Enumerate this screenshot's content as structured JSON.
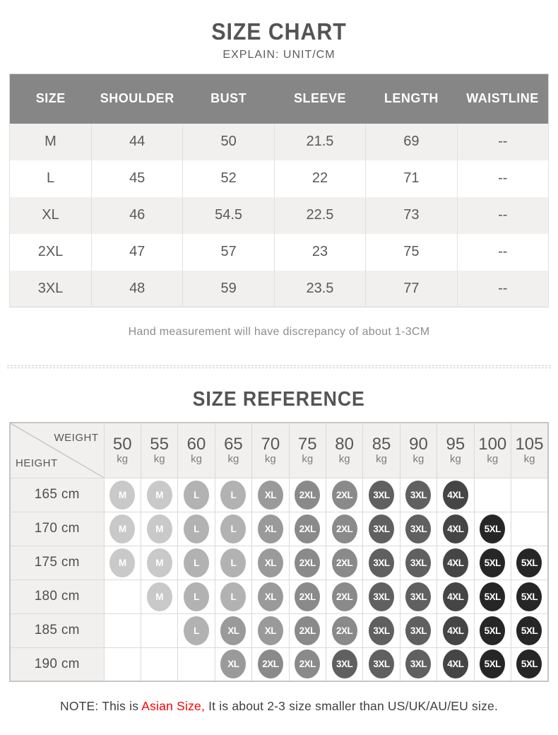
{
  "size_chart": {
    "title": "SIZE CHART",
    "subtitle": "EXPLAIN: UNIT/CM",
    "columns": [
      "SIZE",
      "SHOULDER",
      "BUST",
      "SLEEVE",
      "LENGTH",
      "WAISTLINE"
    ],
    "rows": [
      [
        "M",
        "44",
        "50",
        "21.5",
        "69",
        "--"
      ],
      [
        "L",
        "45",
        "52",
        "22",
        "71",
        "--"
      ],
      [
        "XL",
        "46",
        "54.5",
        "22.5",
        "73",
        "--"
      ],
      [
        "2XL",
        "47",
        "57",
        "23",
        "75",
        "--"
      ],
      [
        "3XL",
        "48",
        "59",
        "23.5",
        "77",
        "--"
      ]
    ],
    "footnote": "Hand measurement will have discrepancy of about 1-3CM"
  },
  "size_reference": {
    "title": "SIZE REFERENCE",
    "corner_top": "WEIGHT",
    "corner_bottom": "HEIGHT",
    "weight_unit": "kg",
    "weights": [
      "50",
      "55",
      "60",
      "65",
      "70",
      "75",
      "80",
      "85",
      "90",
      "95",
      "100",
      "105"
    ],
    "rows": [
      {
        "height": "165 cm",
        "sizes": [
          "M",
          "M",
          "L",
          "L",
          "XL",
          "2XL",
          "2XL",
          "3XL",
          "3XL",
          "4XL",
          "",
          ""
        ]
      },
      {
        "height": "170 cm",
        "sizes": [
          "M",
          "M",
          "L",
          "L",
          "XL",
          "2XL",
          "2XL",
          "3XL",
          "3XL",
          "4XL",
          "5XL",
          ""
        ]
      },
      {
        "height": "175 cm",
        "sizes": [
          "M",
          "M",
          "L",
          "L",
          "XL",
          "2XL",
          "2XL",
          "3XL",
          "3XL",
          "4XL",
          "5XL",
          "5XL"
        ]
      },
      {
        "height": "180 cm",
        "sizes": [
          "",
          "M",
          "L",
          "L",
          "XL",
          "2XL",
          "2XL",
          "3XL",
          "3XL",
          "4XL",
          "5XL",
          "5XL"
        ]
      },
      {
        "height": "185 cm",
        "sizes": [
          "",
          "",
          "L",
          "XL",
          "XL",
          "2XL",
          "2XL",
          "3XL",
          "3XL",
          "4XL",
          "5XL",
          "5XL"
        ]
      },
      {
        "height": "190 cm",
        "sizes": [
          "",
          "",
          "",
          "XL",
          "2XL",
          "2XL",
          "3XL",
          "3XL",
          "3XL",
          "4XL",
          "5XL",
          "5XL"
        ]
      }
    ],
    "size_badge_colors": {
      "M": "#c9c9c9",
      "L": "#b2b2b2",
      "XL": "#9a9a9a",
      "2XL": "#8a8a8a",
      "3XL": "#606060",
      "4XL": "#454545",
      "5XL": "#262626"
    }
  },
  "note": {
    "prefix": "NOTE: This is ",
    "highlight": "Asian Size,",
    "suffix": " It is about 2-3 size smaller than US/UK/AU/EU size."
  },
  "colors": {
    "table_header_bg": "#868686",
    "table_row_alt_bg": "#f1f0ee",
    "note_red": "#fe0000"
  }
}
